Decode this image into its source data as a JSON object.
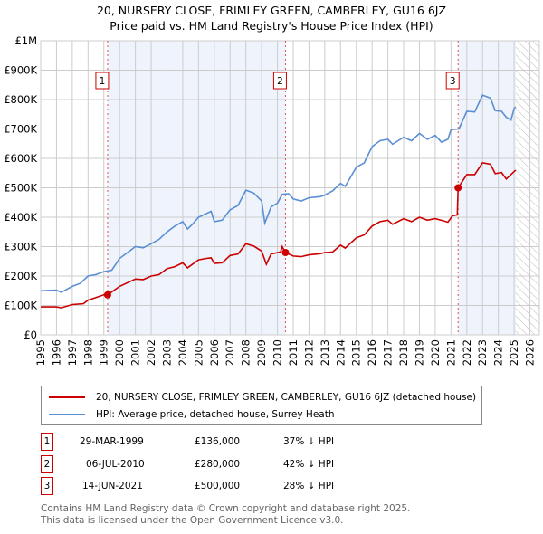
{
  "header": {
    "title": "20, NURSERY CLOSE, FRIMLEY GREEN, CAMBERLEY, GU16 6JZ",
    "subtitle": "Price paid vs. HM Land Registry's House Price Index (HPI)"
  },
  "chart_data": {
    "type": "line",
    "xlim": [
      1995,
      2026.6
    ],
    "ylim": [
      0,
      1000000
    ],
    "y_ticks": [
      {
        "v": 0,
        "label": "£0"
      },
      {
        "v": 100000,
        "label": "£100K"
      },
      {
        "v": 200000,
        "label": "£200K"
      },
      {
        "v": 300000,
        "label": "£300K"
      },
      {
        "v": 400000,
        "label": "£400K"
      },
      {
        "v": 500000,
        "label": "£500K"
      },
      {
        "v": 600000,
        "label": "£600K"
      },
      {
        "v": 700000,
        "label": "£700K"
      },
      {
        "v": 800000,
        "label": "£800K"
      },
      {
        "v": 900000,
        "label": "£900K"
      },
      {
        "v": 1000000,
        "label": "£1M"
      }
    ],
    "x_ticks": [
      "1995",
      "1996",
      "1997",
      "1998",
      "1999",
      "2000",
      "2001",
      "2002",
      "2003",
      "2004",
      "2005",
      "2006",
      "2007",
      "2008",
      "2009",
      "2010",
      "2011",
      "2012",
      "2013",
      "2014",
      "2015",
      "2016",
      "2017",
      "2018",
      "2019",
      "2020",
      "2021",
      "2022",
      "2023",
      "2024",
      "2025",
      "2026"
    ],
    "grid": true,
    "colors": {
      "property": "#cc0000",
      "hpi": "#5b8fd4",
      "shade": "#eef3fc"
    },
    "series": [
      {
        "name": "20, NURSERY CLOSE, FRIMLEY GREEN, CAMBERLEY, GU16 6JZ (detached house)",
        "key": "property",
        "points": [
          [
            1995,
            95
          ],
          [
            1996,
            95
          ],
          [
            1996.3,
            92
          ],
          [
            1997,
            103
          ],
          [
            1997.7,
            106
          ],
          [
            1998,
            118
          ],
          [
            1998.5,
            127
          ],
          [
            1999,
            136
          ],
          [
            1999.24,
            136
          ],
          [
            2000,
            165
          ],
          [
            2001,
            190
          ],
          [
            2001.5,
            188
          ],
          [
            2002,
            200
          ],
          [
            2002.5,
            205
          ],
          [
            2003,
            225
          ],
          [
            2003.5,
            232
          ],
          [
            2004,
            245
          ],
          [
            2004.3,
            228
          ],
          [
            2005,
            255
          ],
          [
            2005.5,
            260
          ],
          [
            2005.8,
            262
          ],
          [
            2006,
            243
          ],
          [
            2006.5,
            245
          ],
          [
            2007,
            270
          ],
          [
            2007.5,
            275
          ],
          [
            2008,
            310
          ],
          [
            2008.5,
            302
          ],
          [
            2009,
            285
          ],
          [
            2009.3,
            240
          ],
          [
            2009.6,
            275
          ],
          [
            2010.2,
            282
          ],
          [
            2010.3,
            300
          ],
          [
            2010.5,
            280
          ],
          [
            2011,
            268
          ],
          [
            2011.5,
            266
          ],
          [
            2012,
            272
          ],
          [
            2012.7,
            276
          ],
          [
            2013,
            280
          ],
          [
            2013.5,
            282
          ],
          [
            2014,
            305
          ],
          [
            2014.3,
            295
          ],
          [
            2015,
            330
          ],
          [
            2015.5,
            340
          ],
          [
            2016,
            370
          ],
          [
            2016.5,
            385
          ],
          [
            2017,
            390
          ],
          [
            2017.3,
            376
          ],
          [
            2018,
            395
          ],
          [
            2018.5,
            385
          ],
          [
            2019,
            400
          ],
          [
            2019.5,
            390
          ],
          [
            2020,
            395
          ],
          [
            2020.5,
            388
          ],
          [
            2020.8,
            383
          ],
          [
            2021.1,
            405
          ],
          [
            2021.4,
            408
          ],
          [
            2021.45,
            500
          ],
          [
            2022,
            545
          ],
          [
            2022.5,
            545
          ],
          [
            2023,
            585
          ],
          [
            2023.5,
            580
          ],
          [
            2023.8,
            548
          ],
          [
            2024.2,
            552
          ],
          [
            2024.5,
            530
          ],
          [
            2025,
            555
          ],
          [
            2025.1,
            560
          ]
        ]
      },
      {
        "name": "HPI: Average price, detached house, Surrey Heath",
        "key": "hpi",
        "points": [
          [
            1995,
            150
          ],
          [
            1996,
            152
          ],
          [
            1996.3,
            145
          ],
          [
            1997,
            165
          ],
          [
            1997.5,
            175
          ],
          [
            1998,
            200
          ],
          [
            1998.5,
            205
          ],
          [
            1999,
            215
          ],
          [
            1999.5,
            220
          ],
          [
            2000,
            260
          ],
          [
            2001,
            300
          ],
          [
            2001.5,
            296
          ],
          [
            2002,
            310
          ],
          [
            2002.5,
            325
          ],
          [
            2003,
            350
          ],
          [
            2003.5,
            370
          ],
          [
            2004,
            385
          ],
          [
            2004.3,
            360
          ],
          [
            2004.6,
            375
          ],
          [
            2005,
            400
          ],
          [
            2005.8,
            420
          ],
          [
            2006,
            385
          ],
          [
            2006.5,
            390
          ],
          [
            2007,
            425
          ],
          [
            2007.5,
            440
          ],
          [
            2008,
            492
          ],
          [
            2008.5,
            482
          ],
          [
            2009,
            455
          ],
          [
            2009.2,
            380
          ],
          [
            2009.6,
            435
          ],
          [
            2010,
            448
          ],
          [
            2010.3,
            478
          ],
          [
            2010.7,
            480
          ],
          [
            2011,
            462
          ],
          [
            2011.5,
            455
          ],
          [
            2012,
            466
          ],
          [
            2012.7,
            470
          ],
          [
            2013,
            475
          ],
          [
            2013.5,
            490
          ],
          [
            2014,
            515
          ],
          [
            2014.3,
            505
          ],
          [
            2015,
            570
          ],
          [
            2015.5,
            585
          ],
          [
            2016,
            640
          ],
          [
            2016.5,
            660
          ],
          [
            2017,
            665
          ],
          [
            2017.3,
            648
          ],
          [
            2018,
            672
          ],
          [
            2018.5,
            660
          ],
          [
            2019,
            685
          ],
          [
            2019.5,
            665
          ],
          [
            2020,
            678
          ],
          [
            2020.4,
            655
          ],
          [
            2020.8,
            665
          ],
          [
            2021,
            698
          ],
          [
            2021.5,
            700
          ],
          [
            2022,
            760
          ],
          [
            2022.5,
            758
          ],
          [
            2023,
            815
          ],
          [
            2023.5,
            805
          ],
          [
            2023.8,
            762
          ],
          [
            2024.2,
            760
          ],
          [
            2024.5,
            740
          ],
          [
            2024.8,
            730
          ],
          [
            2025,
            770
          ],
          [
            2025.1,
            775
          ]
        ]
      }
    ],
    "sales": [
      {
        "n": "1",
        "x": 1999.24,
        "v": 136,
        "date": "29-MAR-1999",
        "price": "£136,000",
        "hpi": "37% ↓ HPI"
      },
      {
        "n": "2",
        "x": 2010.51,
        "v": 280,
        "date": "06-JUL-2010",
        "price": "£280,000",
        "hpi": "42% ↓ HPI"
      },
      {
        "n": "3",
        "x": 2021.45,
        "v": 500,
        "date": "14-JUN-2021",
        "price": "£500,000",
        "hpi": "28% ↓ HPI"
      }
    ],
    "shaded_periods": [
      [
        1999.24,
        2010.51
      ],
      [
        2021.45,
        2025.1
      ]
    ],
    "forecast_hatch_from": 2025.1
  },
  "footer": {
    "line1": "Contains HM Land Registry data © Crown copyright and database right 2025.",
    "line2": "This data is licensed under the Open Government Licence v3.0."
  }
}
